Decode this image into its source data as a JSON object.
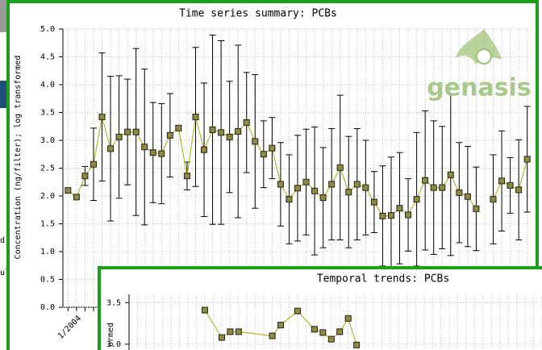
{
  "fragments": [
    "d n",
    "ul"
  ],
  "logo": "genasis",
  "chart_data": [
    {
      "type": "line",
      "title": "Time series summary: PCBs",
      "ylabel": "Concentration (ng/filter); log transformed",
      "categories": [
        null,
        "1/2004",
        null,
        null,
        null,
        null,
        null,
        null,
        null,
        null,
        null,
        null,
        null,
        null,
        null,
        null,
        null,
        null,
        null,
        null,
        null,
        null,
        null,
        null,
        null,
        null,
        null,
        null,
        null,
        null,
        null,
        null,
        null,
        null,
        null,
        null,
        null,
        null,
        null,
        null,
        null,
        null,
        null,
        null,
        null,
        null,
        null,
        null,
        null,
        null,
        null,
        null,
        null,
        null,
        null
      ],
      "values": [
        2.1,
        1.98,
        2.36,
        2.57,
        3.42,
        2.85,
        3.06,
        3.15,
        3.15,
        2.88,
        2.78,
        2.76,
        3.09,
        3.22,
        2.36,
        3.42,
        2.83,
        3.19,
        3.14,
        3.06,
        3.16,
        3.32,
        2.98,
        2.75,
        2.86,
        2.21,
        1.94,
        2.14,
        2.25,
        2.09,
        1.97,
        2.21,
        2.51,
        2.07,
        2.21,
        2.15,
        1.89,
        1.64,
        1.65,
        1.78,
        1.66,
        1.94,
        2.28,
        2.15,
        2.15,
        2.38,
        2.06,
        1.99,
        1.77,
        null,
        1.94,
        2.27,
        2.19,
        2.11,
        2.66
      ],
      "errors": [
        null,
        null,
        0.17,
        0.65,
        1.15,
        1.3,
        1.1,
        0.95,
        1.5,
        1.4,
        0.9,
        0.9,
        0.75,
        null,
        0.25,
        1.25,
        1.2,
        1.7,
        1.65,
        1.0,
        1.55,
        0.9,
        1.2,
        0.6,
        0.55,
        0.75,
        0.8,
        0.95,
        0.95,
        1.15,
        0.9,
        1.0,
        1.3,
        1.0,
        1.0,
        0.85,
        0.55,
        0.9,
        1.05,
        1.0,
        0.65,
        1.2,
        1.25,
        1.2,
        1.1,
        1.45,
        0.9,
        0.9,
        0.75,
        null,
        0.8,
        0.9,
        0.5,
        0.9,
        0.95
      ],
      "color": "#b5b52e",
      "marker_color": "#8e8c3c",
      "ylim": [
        0,
        5
      ],
      "yticks": [
        {
          "value": 0,
          "label": "0.0"
        },
        0.5,
        {
          "value": 1,
          "label": "1.0"
        },
        1.5,
        {
          "value": 2,
          "label": "2.0"
        },
        2.5,
        {
          "value": 3,
          "label": "3.0"
        },
        3.5,
        {
          "value": 4,
          "label": "4.0"
        },
        4.5,
        {
          "value": 5,
          "label": "5.0"
        }
      ],
      "grid": true
    },
    {
      "type": "line",
      "title": "Temporal trends: PCBs",
      "ylabel": "ormed",
      "x": [
        0,
        2,
        3,
        4,
        8,
        9,
        11,
        13,
        14,
        15,
        16,
        17,
        18
      ],
      "values": [
        3.41,
        3.08,
        3.15,
        3.15,
        3.1,
        3.23,
        3.4,
        3.18,
        3.14,
        3.06,
        3.15,
        3.31,
        2.99
      ],
      "xlim": [
        -9,
        40
      ],
      "color": "#b5b52e",
      "marker_color": "#8e8c3c",
      "ylim": [
        2.93,
        3.6
      ],
      "yticks": [
        {
          "value": 3,
          "label": "3.0"
        },
        3.5
      ],
      "grid": true
    }
  ]
}
